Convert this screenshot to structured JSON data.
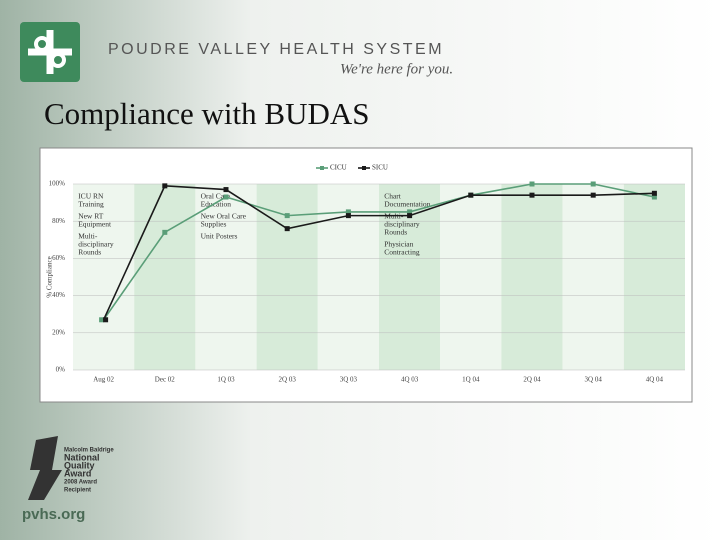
{
  "header": {
    "organization": "POUDRE VALLEY HEALTH SYSTEM",
    "tagline": "We're here for you.",
    "title": "Compliance with BUDAS"
  },
  "footer": {
    "award": [
      "Malcolm Baldrige",
      "National",
      "Quality",
      "Award",
      "2008 Award",
      "Recipient"
    ],
    "website": "pvhs.org"
  },
  "chart_data": {
    "type": "line",
    "y_label": "% Compliance",
    "categories": [
      "Aug 02",
      "Dec 02",
      "1Q 03",
      "2Q 03",
      "3Q 03",
      "4Q 03",
      "1Q 04",
      "2Q 04",
      "3Q 04",
      "4Q 04"
    ],
    "series": [
      {
        "name": "CICU",
        "color": "#5a9e78",
        "values": [
          27,
          74,
          93,
          83,
          85,
          85,
          94,
          100,
          100,
          93
        ]
      },
      {
        "name": "SICU",
        "color": "#1a1a1a",
        "values": [
          27,
          99,
          97,
          76,
          83,
          83,
          94,
          94,
          94,
          95
        ]
      }
    ],
    "ylim": [
      0,
      100
    ],
    "yticks": [
      {
        "value": 0,
        "label": "0%"
      },
      {
        "value": 20,
        "label": "20%"
      },
      {
        "value": 40,
        "label": "40%"
      },
      {
        "value": 60,
        "label": "60%"
      },
      {
        "value": 80,
        "label": "80%"
      },
      {
        "value": 100,
        "label": "100%"
      }
    ],
    "grid": true,
    "annotations": [
      [
        [
          "ICU RN",
          "Training"
        ],
        [
          "New RT",
          "Equipment"
        ],
        [
          "Multi-",
          "disciplinary",
          "Rounds"
        ]
      ],
      [
        [
          "Oral Care",
          "Education"
        ],
        [
          "New Oral Care",
          "Supplies"
        ],
        [
          "Unit Posters"
        ]
      ],
      [
        [
          "Chart",
          "Documentation"
        ],
        [
          "Multi-",
          "disciplinary",
          "Rounds"
        ],
        [
          "Physician",
          "Contracting"
        ]
      ]
    ]
  }
}
